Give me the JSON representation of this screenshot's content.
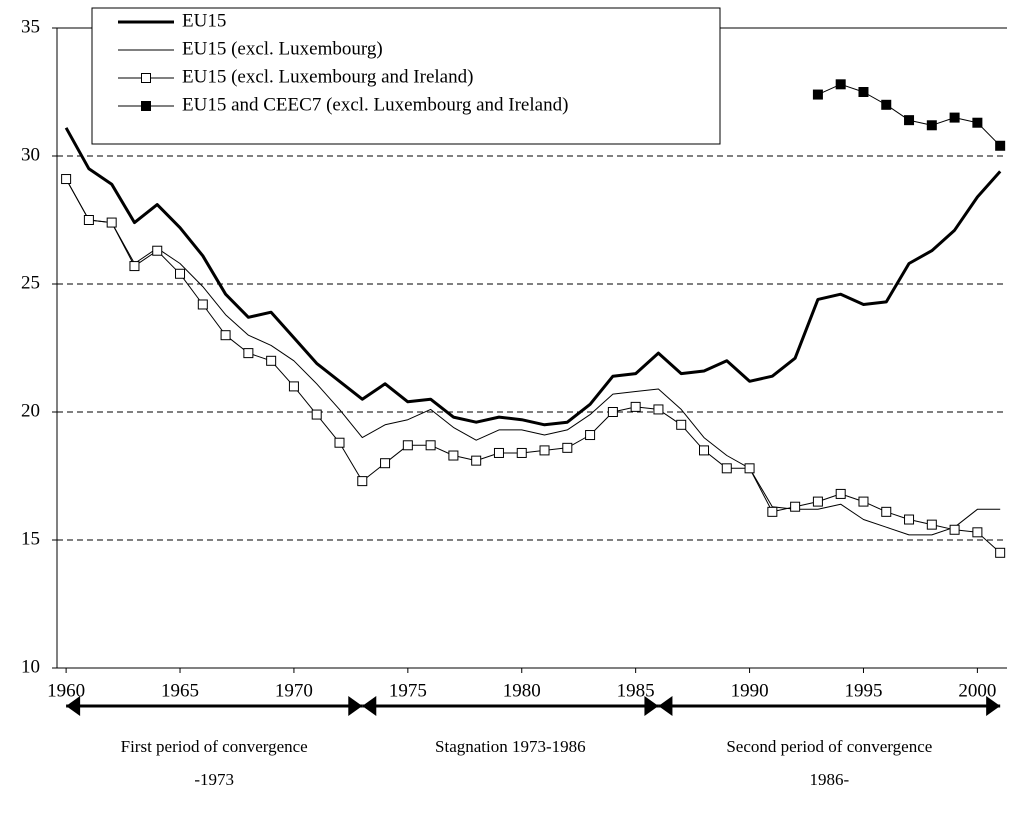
{
  "chart_data": {
    "type": "line",
    "x": [
      1960,
      1961,
      1962,
      1963,
      1964,
      1965,
      1966,
      1967,
      1968,
      1969,
      1970,
      1971,
      1972,
      1973,
      1974,
      1975,
      1976,
      1977,
      1978,
      1979,
      1980,
      1981,
      1982,
      1983,
      1984,
      1985,
      1986,
      1987,
      1988,
      1989,
      1990,
      1991,
      1992,
      1993,
      1994,
      1995,
      1996,
      1997,
      1998,
      1999,
      2000,
      2001
    ],
    "series": [
      {
        "name": "EU15",
        "color": "#000000",
        "line_width": 3,
        "marker": "none",
        "values": [
          31.1,
          29.5,
          28.9,
          27.4,
          28.1,
          27.2,
          26.1,
          24.6,
          23.7,
          23.9,
          22.9,
          21.9,
          21.2,
          20.5,
          21.1,
          20.4,
          20.5,
          19.8,
          19.6,
          19.8,
          19.7,
          19.5,
          19.6,
          20.3,
          21.4,
          21.5,
          22.3,
          21.5,
          21.6,
          22.0,
          21.2,
          21.4,
          22.1,
          24.4,
          24.6,
          24.2,
          24.3,
          25.8,
          26.3,
          27.1,
          28.4,
          29.4
        ]
      },
      {
        "name": "EU15 (excl. Luxembourg)",
        "color": "#000000",
        "line_width": 1,
        "marker": "none",
        "values": [
          29.1,
          27.5,
          27.4,
          25.8,
          26.4,
          25.8,
          24.9,
          23.8,
          23.0,
          22.6,
          22.0,
          21.1,
          20.1,
          19.0,
          19.5,
          19.7,
          20.1,
          19.4,
          18.9,
          19.3,
          19.3,
          19.1,
          19.3,
          19.9,
          20.7,
          20.8,
          20.9,
          20.1,
          19.0,
          18.3,
          17.8,
          16.3,
          16.2,
          16.2,
          16.4,
          15.8,
          15.5,
          15.2,
          15.2,
          15.5,
          16.2,
          16.2
        ]
      },
      {
        "name": "EU15 (excl. Luxembourg and Ireland)",
        "color": "#000000",
        "line_width": 1,
        "marker": "open-square",
        "values": [
          29.1,
          27.5,
          27.4,
          25.7,
          26.3,
          25.4,
          24.2,
          23.0,
          22.3,
          22.0,
          21.0,
          19.9,
          18.8,
          17.3,
          18.0,
          18.7,
          18.7,
          18.3,
          18.1,
          18.4,
          18.4,
          18.5,
          18.6,
          19.1,
          20.0,
          20.2,
          20.1,
          19.5,
          18.5,
          17.8,
          17.8,
          16.1,
          16.3,
          16.5,
          16.8,
          16.5,
          16.1,
          15.8,
          15.6,
          15.4,
          15.3,
          14.5
        ]
      },
      {
        "name": "EU15 and CEEC7 (excl. Luxembourg and Ireland)",
        "color": "#000000",
        "line_width": 1,
        "marker": "filled-square",
        "values": [
          null,
          null,
          null,
          null,
          null,
          null,
          null,
          null,
          null,
          null,
          null,
          null,
          null,
          null,
          null,
          null,
          null,
          null,
          null,
          null,
          null,
          null,
          null,
          null,
          null,
          null,
          null,
          null,
          null,
          null,
          null,
          null,
          null,
          32.4,
          32.8,
          32.5,
          32.0,
          31.4,
          31.2,
          31.5,
          31.3,
          30.4
        ]
      }
    ],
    "xlim": [
      1959.6,
      2001.3
    ],
    "xticks": [
      1960,
      1965,
      1970,
      1975,
      1980,
      1985,
      1990,
      1995,
      2000
    ],
    "ylim": [
      10,
      35
    ],
    "yticks": [
      10,
      15,
      20,
      25,
      30,
      35
    ],
    "grid": true,
    "legend": "top-left",
    "periods": [
      {
        "label": [
          "First period of convergence",
          "-1973"
        ],
        "from": 1960,
        "to": 1973
      },
      {
        "label": [
          "Stagnation 1973-1986"
        ],
        "from": 1973,
        "to": 1986
      },
      {
        "label": [
          "Second period of convergence",
          "1986-"
        ],
        "from": 1986,
        "to": 2001
      }
    ]
  }
}
